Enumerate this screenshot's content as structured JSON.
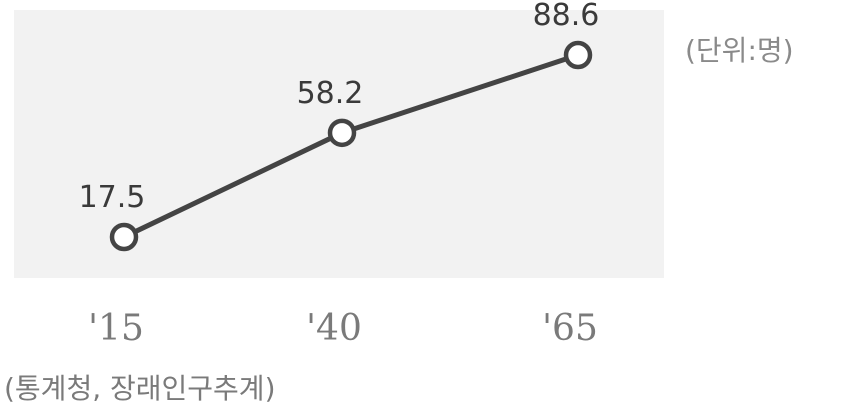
{
  "chart_data": {
    "type": "line",
    "categories": [
      "'15",
      "'40",
      "'65"
    ],
    "series": [
      {
        "values": [
          17.5,
          58.2,
          88.6
        ]
      }
    ],
    "data_labels": [
      "17.5",
      "58.2",
      "88.6"
    ],
    "unit_label": "(단위:명)",
    "source": "(통계청, 장래인구추계)",
    "ylim": [
      0,
      100
    ],
    "grid": false,
    "line_color": "#444444",
    "background_color": "#f2f2f2"
  }
}
